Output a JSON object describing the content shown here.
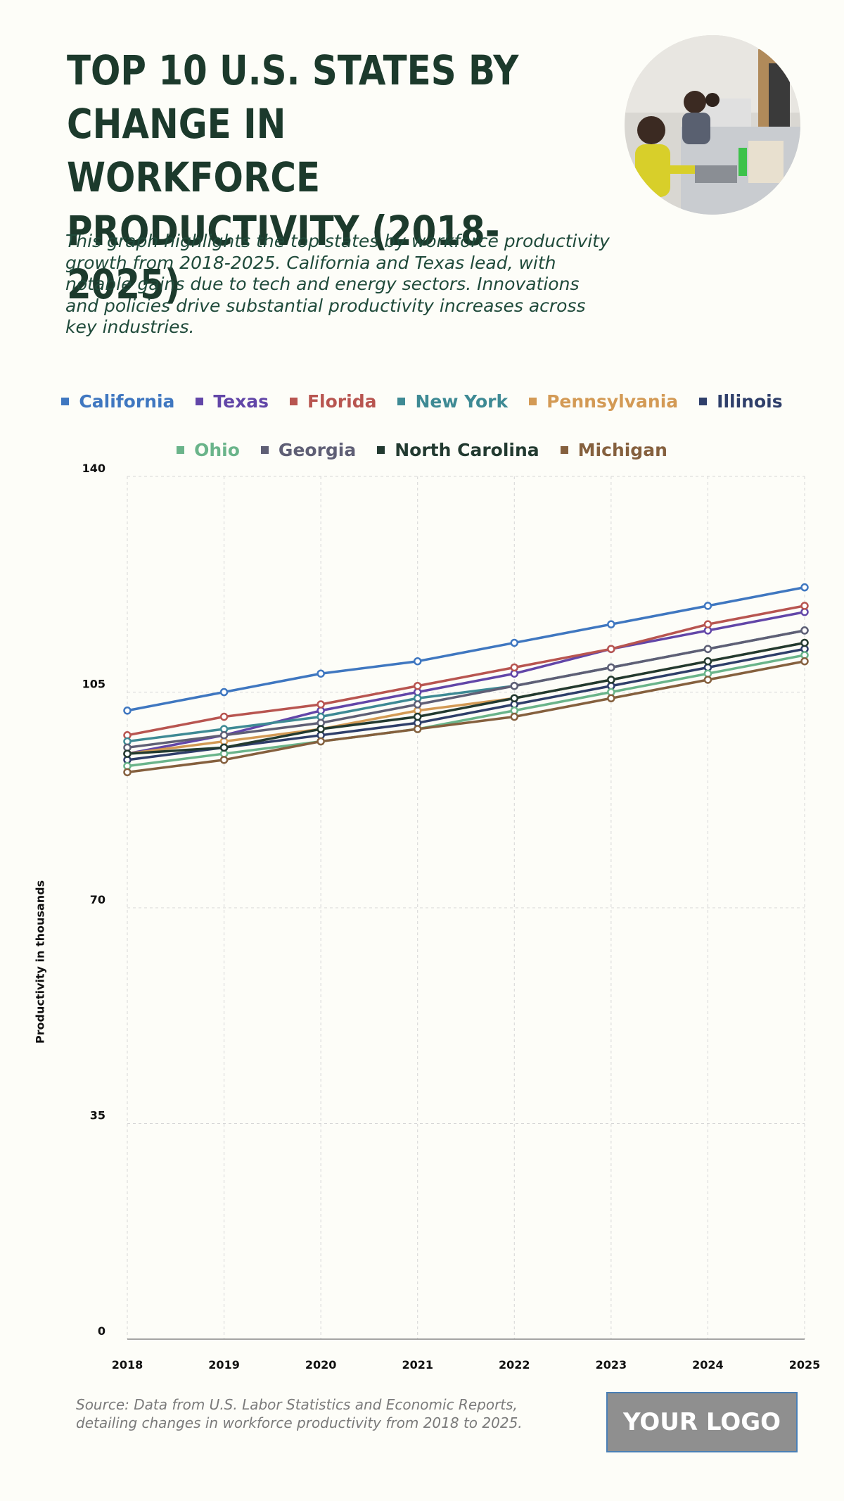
{
  "header": {
    "title": "TOP 10 U.S. STATES BY\nCHANGE IN WORKFORCE\nPRODUCTIVITY (2018-2025)",
    "subtitle": "This graph highlights the top states by workforce productivity growth from 2018-2025. California and Texas lead, with notable gains due to tech and energy sectors. Innovations and policies drive substantial productivity increases across key industries."
  },
  "footer": {
    "source": "Source: Data from U.S. Labor Statistics and Economic Reports, detailing changes in workforce productivity from 2018 to 2025.",
    "logo_text": "YOUR LOGO"
  },
  "chart_data": {
    "type": "line",
    "title": "TOP 10 U.S. STATES BY CHANGE IN WORKFORCE PRODUCTIVITY (2018-2025)",
    "xlabel": "",
    "ylabel": "Productivity in thousands",
    "ylim": [
      0,
      140
    ],
    "yticks": [
      0,
      35,
      70,
      105,
      140
    ],
    "grid": true,
    "legend_position": "top",
    "x": [
      "2018",
      "2019",
      "2020",
      "2021",
      "2022",
      "2023",
      "2024",
      "2025"
    ],
    "series": [
      {
        "name": "California",
        "color": "#3f77c0",
        "values": [
          102,
          105,
          108,
          110,
          113,
          116,
          119,
          122
        ]
      },
      {
        "name": "Texas",
        "color": "#6246a8",
        "values": [
          95,
          98,
          102,
          105,
          108,
          112,
          115,
          118
        ]
      },
      {
        "name": "Florida",
        "color": "#b85550",
        "values": [
          98,
          101,
          103,
          106,
          109,
          112,
          116,
          119
        ]
      },
      {
        "name": "New York",
        "color": "#3e8a94",
        "values": [
          97,
          99,
          101,
          104,
          106,
          109,
          112,
          115
        ]
      },
      {
        "name": "Pennsylvania",
        "color": "#d39a55",
        "values": [
          95,
          97,
          99,
          102,
          104,
          107,
          110,
          113
        ]
      },
      {
        "name": "Illinois",
        "color": "#2f3f6a",
        "values": [
          94,
          96,
          98,
          100,
          103,
          106,
          109,
          112
        ]
      },
      {
        "name": "Ohio",
        "color": "#6ab48a",
        "values": [
          93,
          95,
          97,
          99,
          102,
          105,
          108,
          111
        ]
      },
      {
        "name": "Georgia",
        "color": "#5f5f75",
        "values": [
          96,
          98,
          100,
          103,
          106,
          109,
          112,
          115
        ]
      },
      {
        "name": "North Carolina",
        "color": "#223a30",
        "values": [
          95,
          96,
          99,
          101,
          104,
          107,
          110,
          113
        ]
      },
      {
        "name": "Michigan",
        "color": "#85603e",
        "values": [
          92,
          94,
          97,
          99,
          101,
          104,
          107,
          110
        ]
      }
    ]
  }
}
